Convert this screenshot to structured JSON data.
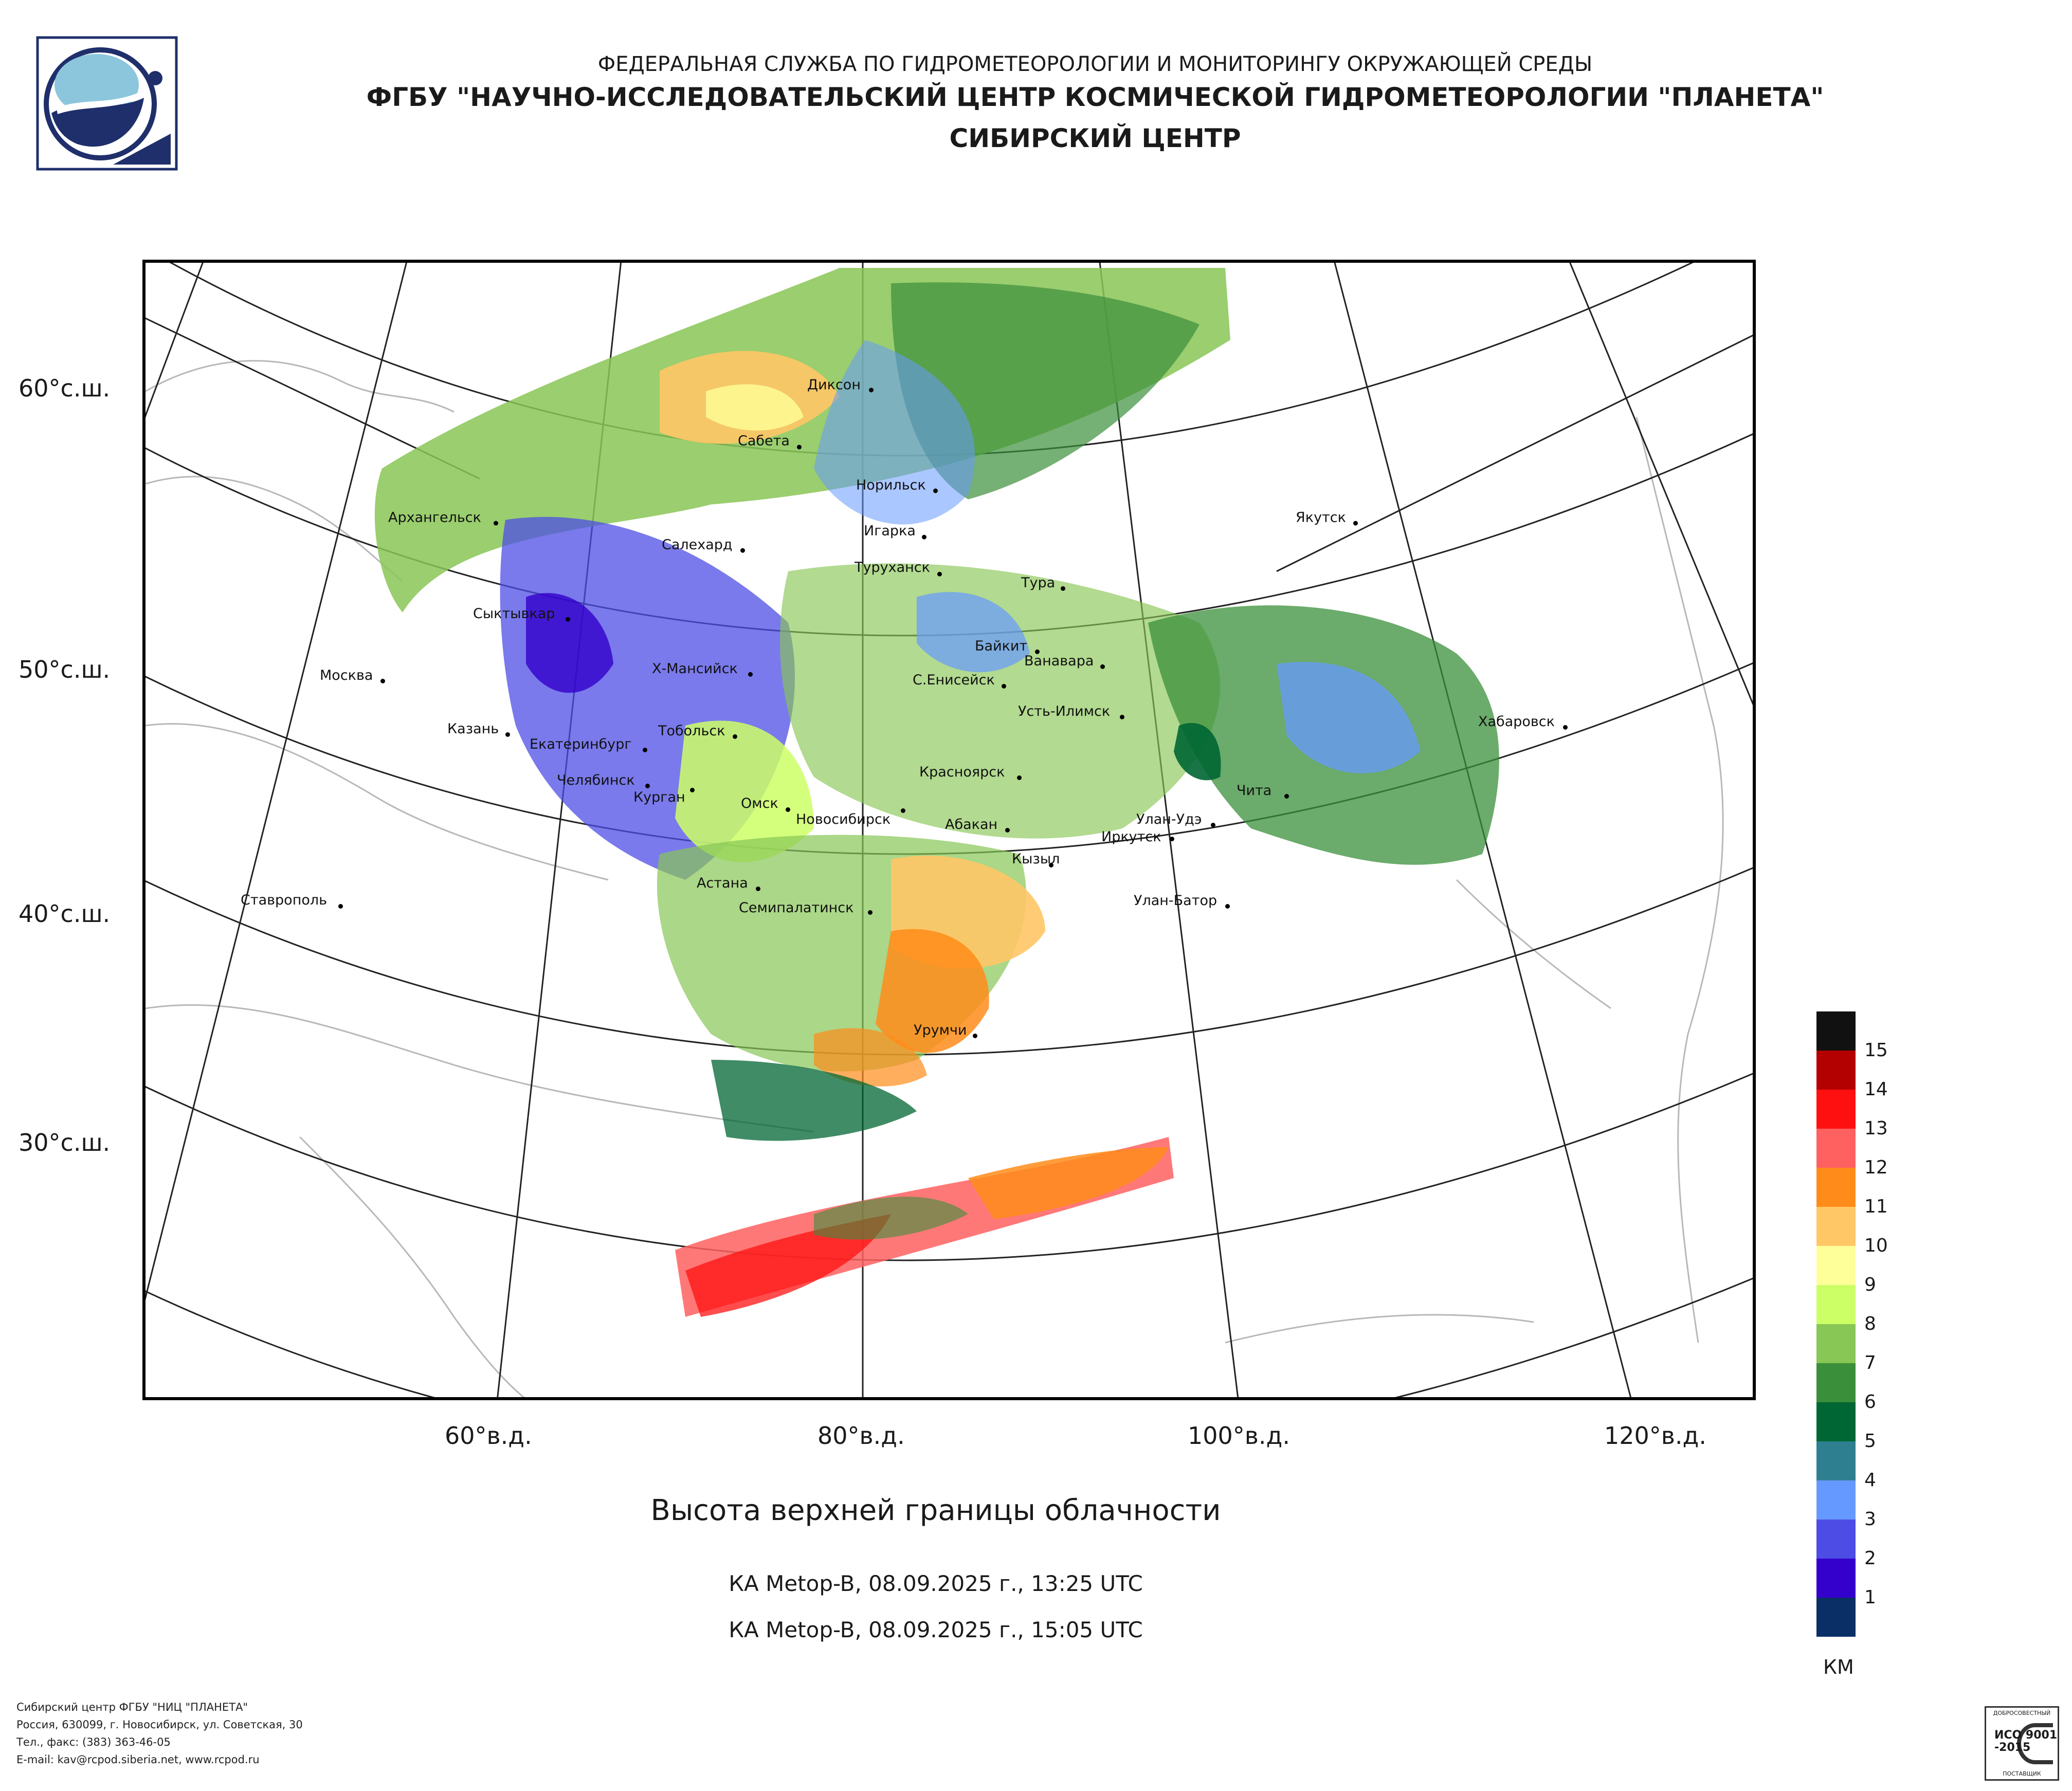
{
  "header": {
    "line1": "ФЕДЕРАЛЬНАЯ СЛУЖБА ПО ГИДРОМЕТЕОРОЛОГИИ И МОНИТОРИНГУ ОКРУЖАЮЩЕЙ СРЕДЫ",
    "line2": "ФГБУ \"НАУЧНО-ИССЛЕДОВАТЕЛЬСКИЙ ЦЕНТР КОСМИЧЕСКОЙ ГИДРОМЕТЕОРОЛОГИИ \"ПЛАНЕТА\"",
    "line3": "СИБИРСКИЙ ЦЕНТР"
  },
  "map": {
    "lat_labels": [
      "60°с.ш.",
      "50°с.ш.",
      "40°с.ш.",
      "30°с.ш."
    ],
    "lon_labels": [
      "60°в.д.",
      "80°в.д.",
      "100°в.д.",
      "120°в.д."
    ],
    "cities": [
      "Диксон",
      "Сабета",
      "Норильск",
      "Архангельск",
      "Игарка",
      "Якутск",
      "Салехард",
      "Туруханск",
      "Тура",
      "Сыктывкар",
      "Байкит",
      "Ванавара",
      "Москва",
      "Х-Мансийск",
      "С.Енисейск",
      "Усть-Илимск",
      "Казань",
      "Тобольск",
      "Хабаровск",
      "Екатеринбург",
      "Красноярск",
      "Челябинск",
      "Чита",
      "Курган",
      "Омск",
      "Новосибирск",
      "Абакан",
      "Улан-Удэ",
      "Иркутск",
      "Кызыл",
      "Ставрополь",
      "Астана",
      "Улан-Батор",
      "Семипалатинск",
      "Урумчи"
    ]
  },
  "legend": {
    "levels": [
      "15",
      "14",
      "13",
      "12",
      "11",
      "10",
      "9",
      "8",
      "7",
      "6",
      "5",
      "4",
      "3",
      "2",
      "1"
    ],
    "colors": [
      "#111111",
      "#b30000",
      "#ff1010",
      "#ff6060",
      "#ff8c1a",
      "#ffc766",
      "#ffff99",
      "#ccff66",
      "#88c655",
      "#3a8f3a",
      "#006633",
      "#2e7f8f",
      "#6699ff",
      "#4d4de6",
      "#3300cc",
      "#0a2e66"
    ],
    "unit": "КМ"
  },
  "title": "Высота верхней границы облачности",
  "passes": [
    "КА Metop-B, 08.09.2025 г., 13:25 UTC",
    "КА Metop-B, 08.09.2025 г., 15:05 UTC"
  ],
  "footer": {
    "line1": "Сибирский центр ФГБУ \"НИЦ \"ПЛАНЕТА\"",
    "line2": "Россия, 630099, г. Новосибирск, ул. Советская, 30",
    "line3": "Тел., факс: (383) 363-46-05",
    "line4": "E-mail: kav@rcpod.siberia.net, www.rcpod.ru"
  },
  "iso": {
    "top": "ДОБРОСОВЕСТНЫЙ",
    "code": "ИСО 9001 -2015",
    "bottom": "ПОСТАВЩИК"
  }
}
